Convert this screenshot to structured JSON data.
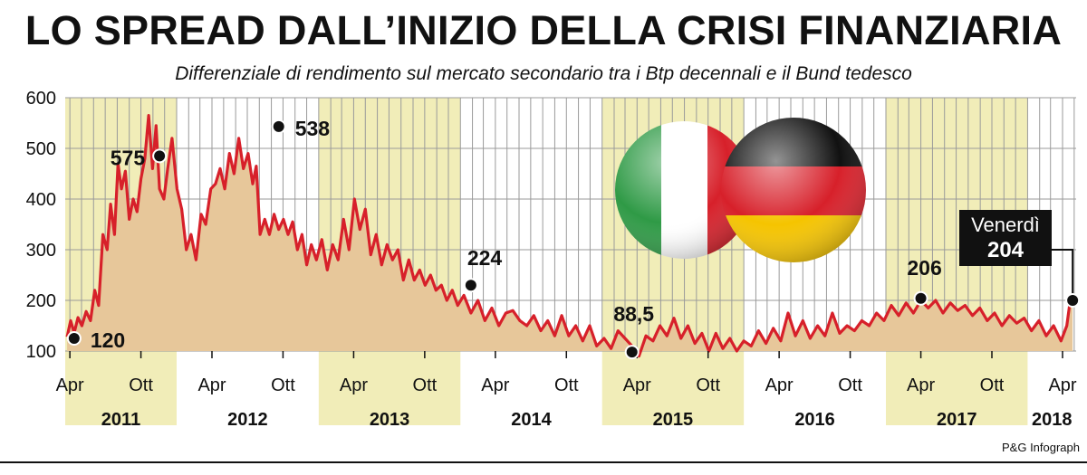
{
  "header": {
    "title": "LO SPREAD DALL’INIZIO DELLA CRISI FINANZIARIA",
    "subtitle": "Differenziale di rendimento sul mercato secondario tra i Btp decennali e il Bund tedesco"
  },
  "credit": "P&G Infograph",
  "colors": {
    "line": "#d7202a",
    "area": "#e7c79a",
    "band": "#f1edb8",
    "grid": "#9a9a9a",
    "callout_bg": "#111111",
    "italy": [
      "#2f9a46",
      "#ffffff",
      "#d7202a"
    ],
    "germany": [
      "#111111",
      "#d7202a",
      "#f5c400"
    ]
  },
  "chart_data": {
    "type": "area",
    "title": "LO SPREAD DALL’INIZIO DELLA CRISI FINANZIARIA",
    "subtitle": "Differenziale di rendimento sul mercato secondario tra i Btp decennali e il Bund tedesco",
    "ylim": [
      100,
      600
    ],
    "yticks": [
      "100",
      "200",
      "300",
      "400",
      "500",
      "600"
    ],
    "xlim": [
      "2011-03-20",
      "2018-05-06"
    ],
    "month_ticks": [
      {
        "label": "Apr",
        "date": "2011-04-01"
      },
      {
        "label": "Ott",
        "date": "2011-10-01"
      },
      {
        "label": "Apr",
        "date": "2012-04-01"
      },
      {
        "label": "Ott",
        "date": "2012-10-01"
      },
      {
        "label": "Apr",
        "date": "2013-04-01"
      },
      {
        "label": "Ott",
        "date": "2013-10-01"
      },
      {
        "label": "Apr",
        "date": "2014-04-01"
      },
      {
        "label": "Ott",
        "date": "2014-10-01"
      },
      {
        "label": "Apr",
        "date": "2015-04-01"
      },
      {
        "label": "Ott",
        "date": "2015-10-01"
      },
      {
        "label": "Apr",
        "date": "2016-04-01"
      },
      {
        "label": "Ott",
        "date": "2016-10-01"
      },
      {
        "label": "Apr",
        "date": "2017-04-01"
      },
      {
        "label": "Ott",
        "date": "2017-10-01"
      },
      {
        "label": "Apr",
        "date": "2018-04-01"
      }
    ],
    "years": [
      {
        "label": "2011",
        "start": "2011-03-20",
        "end": "2012-01-01",
        "shaded": true
      },
      {
        "label": "2012",
        "start": "2012-01-01",
        "end": "2013-01-01",
        "shaded": false
      },
      {
        "label": "2013",
        "start": "2013-01-01",
        "end": "2014-01-01",
        "shaded": true
      },
      {
        "label": "2014",
        "start": "2014-01-01",
        "end": "2015-01-01",
        "shaded": false
      },
      {
        "label": "2015",
        "start": "2015-01-01",
        "end": "2016-01-01",
        "shaded": true
      },
      {
        "label": "2016",
        "start": "2016-01-01",
        "end": "2017-01-01",
        "shaded": false
      },
      {
        "label": "2017",
        "start": "2017-01-01",
        "end": "2018-01-01",
        "shaded": true
      },
      {
        "label": "2018",
        "start": "2018-01-01",
        "end": "2018-05-06",
        "shaded": false
      }
    ],
    "series": [
      {
        "x": [
          "2011-03-25",
          "2011-04-03",
          "2011-04-12",
          "2011-04-22",
          "2011-05-02",
          "2011-05-13",
          "2011-05-24",
          "2011-06-04",
          "2011-06-14",
          "2011-06-25",
          "2011-07-06",
          "2011-07-15",
          "2011-07-25",
          "2011-08-03",
          "2011-08-12",
          "2011-08-22",
          "2011-09-01",
          "2011-09-11",
          "2011-09-21",
          "2011-10-01",
          "2011-10-11",
          "2011-10-21",
          "2011-10-31",
          "2011-11-09",
          "2011-11-18",
          "2011-11-29",
          "2011-12-09",
          "2011-12-20",
          "2012-01-02",
          "2012-01-14",
          "2012-01-26",
          "2012-02-07",
          "2012-02-20",
          "2012-03-04",
          "2012-03-16",
          "2012-03-29",
          "2012-04-10",
          "2012-04-22",
          "2012-05-04",
          "2012-05-16",
          "2012-05-28",
          "2012-06-09",
          "2012-06-21",
          "2012-07-03",
          "2012-07-15",
          "2012-07-24",
          "2012-08-03",
          "2012-08-15",
          "2012-08-27",
          "2012-09-08",
          "2012-09-20",
          "2012-10-02",
          "2012-10-14",
          "2012-10-26",
          "2012-11-07",
          "2012-11-19",
          "2012-12-01",
          "2012-12-13",
          "2012-12-26",
          "2013-01-09",
          "2013-01-23",
          "2013-02-06",
          "2013-02-20",
          "2013-03-06",
          "2013-03-20",
          "2013-04-03",
          "2013-04-17",
          "2013-05-01",
          "2013-05-15",
          "2013-05-29",
          "2013-06-12",
          "2013-06-26",
          "2013-07-10",
          "2013-07-24",
          "2013-08-07",
          "2013-08-21",
          "2013-09-04",
          "2013-09-18",
          "2013-10-02",
          "2013-10-16",
          "2013-10-30",
          "2013-11-13",
          "2013-11-27",
          "2013-12-11",
          "2013-12-25",
          "2014-01-10",
          "2014-01-28",
          "2014-02-15",
          "2014-03-05",
          "2014-03-23",
          "2014-04-10",
          "2014-04-28",
          "2014-05-16",
          "2014-06-03",
          "2014-06-21",
          "2014-07-09",
          "2014-07-27",
          "2014-08-14",
          "2014-09-01",
          "2014-09-19",
          "2014-10-07",
          "2014-10-25",
          "2014-11-12",
          "2014-11-30",
          "2014-12-18",
          "2015-01-06",
          "2015-01-24",
          "2015-02-11",
          "2015-03-01",
          "2015-03-19",
          "2015-04-06",
          "2015-04-24",
          "2015-05-12",
          "2015-05-30",
          "2015-06-17",
          "2015-07-05",
          "2015-07-23",
          "2015-08-10",
          "2015-08-28",
          "2015-09-15",
          "2015-10-03",
          "2015-10-21",
          "2015-11-08",
          "2015-11-26",
          "2015-12-14",
          "2016-01-01",
          "2016-01-20",
          "2016-02-08",
          "2016-02-27",
          "2016-03-17",
          "2016-04-05",
          "2016-04-24",
          "2016-05-13",
          "2016-06-01",
          "2016-06-20",
          "2016-07-09",
          "2016-07-28",
          "2016-08-16",
          "2016-09-04",
          "2016-09-23",
          "2016-10-12",
          "2016-10-31",
          "2016-11-19",
          "2016-12-08",
          "2016-12-27",
          "2017-01-15",
          "2017-02-03",
          "2017-02-22",
          "2017-03-13",
          "2017-04-01",
          "2017-04-20",
          "2017-05-09",
          "2017-05-28",
          "2017-06-16",
          "2017-07-05",
          "2017-07-24",
          "2017-08-12",
          "2017-08-31",
          "2017-09-19",
          "2017-10-08",
          "2017-10-27",
          "2017-11-15",
          "2017-12-04",
          "2017-12-23",
          "2018-01-11",
          "2018-01-30",
          "2018-02-18",
          "2018-03-09",
          "2018-03-28",
          "2018-04-12",
          "2018-04-20",
          "2018-04-27"
        ],
        "y": [
          128,
          160,
          136,
          166,
          150,
          178,
          160,
          220,
          190,
          330,
          300,
          390,
          330,
          470,
          420,
          455,
          360,
          400,
          375,
          440,
          480,
          565,
          460,
          545,
          420,
          400,
          460,
          520,
          420,
          380,
          300,
          330,
          280,
          370,
          350,
          420,
          430,
          460,
          420,
          490,
          450,
          520,
          460,
          490,
          430,
          465,
          330,
          360,
          330,
          370,
          340,
          360,
          330,
          355,
          300,
          330,
          270,
          310,
          280,
          320,
          260,
          310,
          280,
          360,
          300,
          400,
          340,
          380,
          290,
          330,
          270,
          310,
          280,
          300,
          240,
          280,
          240,
          260,
          230,
          250,
          220,
          230,
          200,
          220,
          190,
          210,
          175,
          200,
          160,
          185,
          150,
          175,
          180,
          160,
          150,
          170,
          140,
          160,
          130,
          170,
          130,
          150,
          120,
          150,
          110,
          125,
          105,
          140,
          125,
          110,
          90,
          130,
          120,
          150,
          130,
          165,
          125,
          150,
          115,
          135,
          100,
          135,
          105,
          125,
          100,
          120,
          110,
          140,
          115,
          145,
          120,
          175,
          130,
          160,
          125,
          150,
          130,
          175,
          135,
          150,
          140,
          160,
          150,
          175,
          160,
          190,
          170,
          195,
          175,
          200,
          185,
          200,
          175,
          195,
          180,
          190,
          170,
          185,
          160,
          175,
          150,
          170,
          155,
          165,
          140,
          160,
          130,
          150,
          120,
          150,
          195,
          204
        ]
      }
    ],
    "annotations": [
      {
        "label": "120",
        "x": "2011-04-12",
        "y": 125
      },
      {
        "label": "575",
        "x": "2011-11-18",
        "y": 485
      },
      {
        "label": "538",
        "x": "2012-09-20",
        "y": 543
      },
      {
        "label": "224",
        "x": "2014-01-28",
        "y": 230
      },
      {
        "label": "88,5",
        "x": "2015-03-19",
        "y": 98
      },
      {
        "label": "206",
        "x": "2017-04-01",
        "y": 204
      },
      {
        "label": "Venerdì",
        "label2": "204",
        "x": "2018-04-27",
        "y": 200,
        "callout": true
      }
    ]
  }
}
